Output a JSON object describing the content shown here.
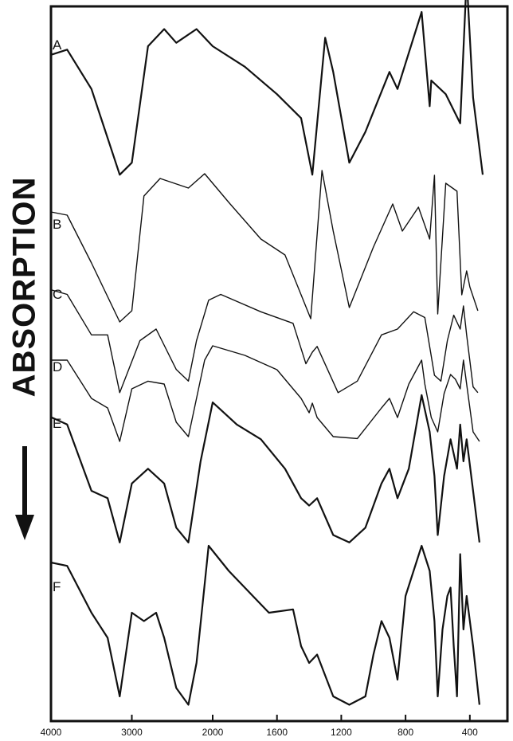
{
  "chart_data": {
    "type": "line",
    "title": "",
    "xlabel": "",
    "ylabel": "ABSORPTION",
    "xlim": [
      4000,
      300
    ],
    "x_ticks": [
      "4000",
      "3000",
      "2000",
      "1600",
      "1200",
      "800",
      "400"
    ],
    "x_scale": "split: 4000-2000 compressed (500 per tick), 2000-300 expanded (400 per tick)",
    "grid": false,
    "legend": "none (curves labeled at left)",
    "series": [
      {
        "name": "A",
        "points": [
          [
            4000,
            0.75
          ],
          [
            3800,
            0.78
          ],
          [
            3500,
            0.55
          ],
          [
            3150,
            0.05
          ],
          [
            3000,
            0.12
          ],
          [
            2800,
            0.8
          ],
          [
            2600,
            0.9
          ],
          [
            2450,
            0.82
          ],
          [
            2200,
            0.9
          ],
          [
            2000,
            0.8
          ],
          [
            1800,
            0.68
          ],
          [
            1600,
            0.52
          ],
          [
            1450,
            0.38
          ],
          [
            1380,
            0.05
          ],
          [
            1300,
            0.85
          ],
          [
            1250,
            0.65
          ],
          [
            1150,
            0.12
          ],
          [
            1050,
            0.3
          ],
          [
            900,
            0.65
          ],
          [
            850,
            0.55
          ],
          [
            700,
            1.0
          ],
          [
            650,
            0.45
          ],
          [
            640,
            0.6
          ],
          [
            550,
            0.52
          ],
          [
            460,
            0.35
          ],
          [
            420,
            1.2
          ],
          [
            380,
            0.5
          ],
          [
            320,
            0.05
          ]
        ]
      },
      {
        "name": "B",
        "points": [
          [
            4000,
            0.72
          ],
          [
            3800,
            0.7
          ],
          [
            3500,
            0.4
          ],
          [
            3150,
            0.03
          ],
          [
            3000,
            0.1
          ],
          [
            2850,
            0.82
          ],
          [
            2650,
            0.93
          ],
          [
            2300,
            0.87
          ],
          [
            2100,
            0.96
          ],
          [
            1900,
            0.78
          ],
          [
            1700,
            0.55
          ],
          [
            1550,
            0.45
          ],
          [
            1450,
            0.2
          ],
          [
            1390,
            0.05
          ],
          [
            1320,
            0.98
          ],
          [
            1250,
            0.6
          ],
          [
            1150,
            0.12
          ],
          [
            1000,
            0.5
          ],
          [
            880,
            0.77
          ],
          [
            820,
            0.6
          ],
          [
            720,
            0.75
          ],
          [
            650,
            0.55
          ],
          [
            620,
            0.95
          ],
          [
            600,
            0.08
          ],
          [
            550,
            0.9
          ],
          [
            480,
            0.85
          ],
          [
            450,
            0.2
          ],
          [
            420,
            0.35
          ],
          [
            400,
            0.25
          ],
          [
            350,
            0.1
          ]
        ]
      },
      {
        "name": "C",
        "points": [
          [
            4000,
            0.94
          ],
          [
            3800,
            0.9
          ],
          [
            3500,
            0.55
          ],
          [
            3300,
            0.55
          ],
          [
            3150,
            0.05
          ],
          [
            2900,
            0.5
          ],
          [
            2700,
            0.6
          ],
          [
            2450,
            0.25
          ],
          [
            2300,
            0.15
          ],
          [
            2200,
            0.5
          ],
          [
            2050,
            0.85
          ],
          [
            1950,
            0.9
          ],
          [
            1700,
            0.75
          ],
          [
            1500,
            0.65
          ],
          [
            1420,
            0.3
          ],
          [
            1380,
            0.4
          ],
          [
            1350,
            0.45
          ],
          [
            1220,
            0.05
          ],
          [
            1100,
            0.15
          ],
          [
            950,
            0.55
          ],
          [
            850,
            0.6
          ],
          [
            750,
            0.75
          ],
          [
            680,
            0.7
          ],
          [
            620,
            0.2
          ],
          [
            580,
            0.15
          ],
          [
            540,
            0.5
          ],
          [
            500,
            0.72
          ],
          [
            460,
            0.6
          ],
          [
            440,
            0.8
          ],
          [
            420,
            0.55
          ],
          [
            380,
            0.1
          ],
          [
            350,
            0.05
          ]
        ]
      },
      {
        "name": "D",
        "points": [
          [
            4000,
            0.9
          ],
          [
            3800,
            0.9
          ],
          [
            3500,
            0.5
          ],
          [
            3300,
            0.4
          ],
          [
            3150,
            0.05
          ],
          [
            3000,
            0.6
          ],
          [
            2800,
            0.68
          ],
          [
            2600,
            0.65
          ],
          [
            2450,
            0.25
          ],
          [
            2300,
            0.1
          ],
          [
            2100,
            0.9
          ],
          [
            2000,
            1.05
          ],
          [
            1800,
            0.95
          ],
          [
            1600,
            0.8
          ],
          [
            1450,
            0.5
          ],
          [
            1400,
            0.35
          ],
          [
            1380,
            0.45
          ],
          [
            1350,
            0.3
          ],
          [
            1250,
            0.1
          ],
          [
            1100,
            0.08
          ],
          [
            950,
            0.4
          ],
          [
            900,
            0.5
          ],
          [
            850,
            0.3
          ],
          [
            780,
            0.65
          ],
          [
            700,
            0.9
          ],
          [
            680,
            0.65
          ],
          [
            640,
            0.3
          ],
          [
            600,
            0.15
          ],
          [
            560,
            0.55
          ],
          [
            520,
            0.75
          ],
          [
            490,
            0.7
          ],
          [
            460,
            0.6
          ],
          [
            440,
            0.9
          ],
          [
            420,
            0.65
          ],
          [
            380,
            0.15
          ],
          [
            340,
            0.05
          ]
        ]
      },
      {
        "name": "E",
        "points": [
          [
            4000,
            0.9
          ],
          [
            3800,
            0.85
          ],
          [
            3500,
            0.4
          ],
          [
            3300,
            0.35
          ],
          [
            3150,
            0.05
          ],
          [
            3000,
            0.45
          ],
          [
            2800,
            0.55
          ],
          [
            2600,
            0.45
          ],
          [
            2450,
            0.15
          ],
          [
            2300,
            0.05
          ],
          [
            2150,
            0.6
          ],
          [
            2000,
            1.0
          ],
          [
            1850,
            0.85
          ],
          [
            1700,
            0.75
          ],
          [
            1550,
            0.55
          ],
          [
            1450,
            0.35
          ],
          [
            1400,
            0.3
          ],
          [
            1350,
            0.35
          ],
          [
            1250,
            0.1
          ],
          [
            1150,
            0.05
          ],
          [
            1050,
            0.15
          ],
          [
            950,
            0.45
          ],
          [
            900,
            0.55
          ],
          [
            850,
            0.35
          ],
          [
            780,
            0.55
          ],
          [
            700,
            1.05
          ],
          [
            650,
            0.8
          ],
          [
            620,
            0.5
          ],
          [
            600,
            0.1
          ],
          [
            560,
            0.5
          ],
          [
            520,
            0.75
          ],
          [
            480,
            0.55
          ],
          [
            460,
            0.85
          ],
          [
            440,
            0.6
          ],
          [
            420,
            0.75
          ],
          [
            380,
            0.4
          ],
          [
            340,
            0.05
          ]
        ]
      },
      {
        "name": "F",
        "points": [
          [
            4000,
            0.9
          ],
          [
            3800,
            0.88
          ],
          [
            3500,
            0.6
          ],
          [
            3300,
            0.45
          ],
          [
            3150,
            0.1
          ],
          [
            3000,
            0.6
          ],
          [
            2850,
            0.55
          ],
          [
            2700,
            0.6
          ],
          [
            2600,
            0.45
          ],
          [
            2450,
            0.15
          ],
          [
            2300,
            0.05
          ],
          [
            2200,
            0.3
          ],
          [
            2050,
            1.0
          ],
          [
            1900,
            0.85
          ],
          [
            1750,
            0.7
          ],
          [
            1650,
            0.6
          ],
          [
            1500,
            0.62
          ],
          [
            1450,
            0.4
          ],
          [
            1400,
            0.3
          ],
          [
            1350,
            0.35
          ],
          [
            1250,
            0.1
          ],
          [
            1150,
            0.05
          ],
          [
            1050,
            0.1
          ],
          [
            1000,
            0.35
          ],
          [
            950,
            0.55
          ],
          [
            900,
            0.45
          ],
          [
            850,
            0.2
          ],
          [
            800,
            0.7
          ],
          [
            700,
            1.0
          ],
          [
            650,
            0.85
          ],
          [
            620,
            0.55
          ],
          [
            600,
            0.1
          ],
          [
            570,
            0.5
          ],
          [
            540,
            0.7
          ],
          [
            520,
            0.75
          ],
          [
            500,
            0.4
          ],
          [
            480,
            0.1
          ],
          [
            460,
            0.95
          ],
          [
            440,
            0.5
          ],
          [
            420,
            0.7
          ],
          [
            380,
            0.4
          ],
          [
            340,
            0.05
          ]
        ]
      }
    ]
  }
}
